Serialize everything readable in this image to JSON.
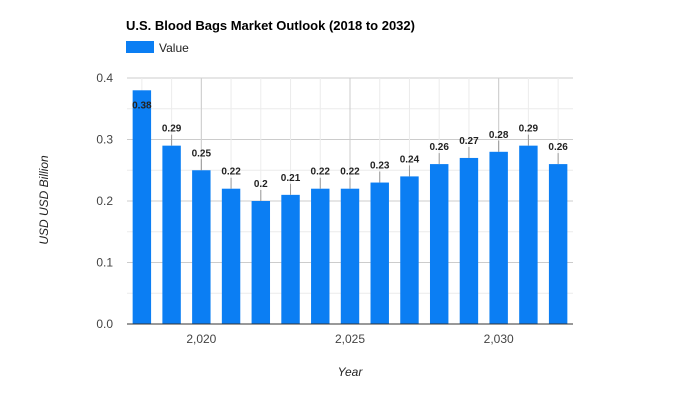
{
  "chart_data": {
    "type": "bar",
    "title": "U.S. Blood Bags Market Outlook (2018 to 2032)",
    "xlabel": "Year",
    "ylabel": "USD USD Billion",
    "legend": {
      "position": "top-left",
      "entries": [
        "Value"
      ]
    },
    "grid": true,
    "ylim": [
      0,
      0.4
    ],
    "xlim": [
      2017.5,
      2032.5
    ],
    "y_ticks": [
      "0.0",
      "0.1",
      "0.2",
      "0.3",
      "0.4"
    ],
    "y_tick_values": [
      0,
      0.1,
      0.2,
      0.3,
      0.4
    ],
    "x_ticks": [
      "2,020",
      "2,025",
      "2,030"
    ],
    "x_tick_values": [
      2020,
      2025,
      2030
    ],
    "x": [
      2018,
      2019,
      2020,
      2021,
      2022,
      2023,
      2024,
      2025,
      2026,
      2027,
      2028,
      2029,
      2030,
      2031,
      2032
    ],
    "series": [
      {
        "name": "Value",
        "color": "#0b7ef3",
        "values": [
          0.38,
          0.29,
          0.25,
          0.22,
          0.2,
          0.21,
          0.22,
          0.22,
          0.23,
          0.24,
          0.26,
          0.27,
          0.28,
          0.29,
          0.26
        ],
        "labels": [
          "0.38",
          "0.29",
          "0.25",
          "0.22",
          "0.2",
          "0.21",
          "0.22",
          "0.22",
          "0.23",
          "0.24",
          "0.26",
          "0.27",
          "0.28",
          "0.29",
          "0.26"
        ]
      }
    ]
  }
}
